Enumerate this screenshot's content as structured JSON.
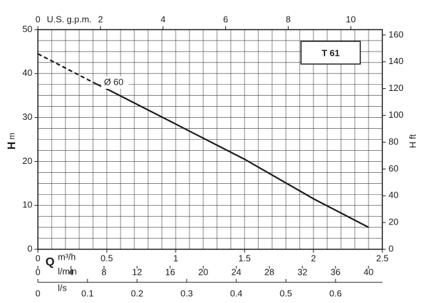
{
  "chart_data": {
    "type": "line",
    "title": "T 61",
    "annotation": "Ø 60",
    "x": [
      0,
      0.4,
      0.5,
      1.0,
      1.5,
      2.0,
      2.4
    ],
    "series": [
      {
        "style": "solid",
        "color": "#1a1a1a",
        "values": [
          null,
          38,
          36.5,
          28.5,
          20.5,
          11.5,
          5
        ]
      },
      {
        "style": "dashed",
        "color": "#1a1a1a",
        "values": [
          44.5,
          38,
          null,
          null,
          null,
          null,
          null
        ]
      }
    ],
    "xlabel": {
      "symbol": "Q",
      "unit": "m³/h"
    },
    "xlim": [
      0,
      2.5
    ],
    "xticks": [
      0,
      0.5,
      1,
      1.5,
      2,
      2.5
    ],
    "ylabel": {
      "symbol": "H",
      "unit": "m"
    },
    "ylim": [
      0,
      50
    ],
    "yticks": [
      0,
      10,
      20,
      30,
      40,
      50
    ],
    "y2label": "H ft",
    "y2lim": [
      0,
      164.04
    ],
    "y2ticks": [
      0,
      20,
      40,
      60,
      80,
      100,
      120,
      140,
      160
    ],
    "x2label": "U.S. g.p.m.",
    "x2lim": [
      0,
      11.007
    ],
    "x2ticks": [
      0,
      2,
      4,
      6,
      8,
      10
    ],
    "x3label": "l/min",
    "x3lim": [
      0,
      41.667
    ],
    "x3ticks": [
      0,
      4,
      8,
      12,
      16,
      20,
      24,
      28,
      32,
      36,
      40
    ],
    "x4label": "l/s",
    "x4lim": [
      0,
      0.6944
    ],
    "x4ticks": [
      0,
      0.1,
      0.2,
      0.3,
      0.4,
      0.5,
      0.6
    ],
    "grid": true
  }
}
